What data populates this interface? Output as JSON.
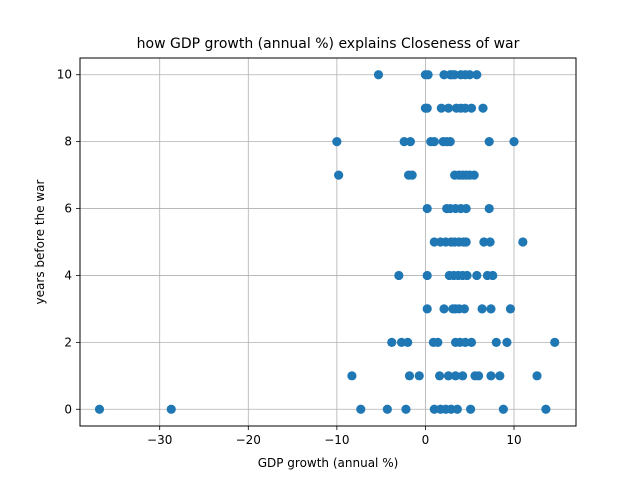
{
  "chart_data": {
    "type": "scatter",
    "title": "how GDP growth (annual %) explains Closeness of war",
    "xlabel": "GDP growth (annual %)",
    "ylabel": "years before the war",
    "xlim": [
      -39,
      17
    ],
    "ylim": [
      -0.5,
      10.5
    ],
    "xticks": [
      -30,
      -20,
      -10,
      0,
      10
    ],
    "xtick_labels": [
      "−30",
      "−20",
      "−10",
      "0",
      "10"
    ],
    "yticks": [
      0,
      2,
      4,
      6,
      8,
      10
    ],
    "ytick_labels": [
      "0",
      "2",
      "4",
      "6",
      "8",
      "10"
    ],
    "grid": true,
    "marker_color": "#1f77b4",
    "points": [
      {
        "x": -5.3,
        "y": 10
      },
      {
        "x": 0.0,
        "y": 10
      },
      {
        "x": 0.3,
        "y": 10
      },
      {
        "x": 2.1,
        "y": 10
      },
      {
        "x": 2.8,
        "y": 10
      },
      {
        "x": 3.0,
        "y": 10
      },
      {
        "x": 3.3,
        "y": 10
      },
      {
        "x": 4.0,
        "y": 10
      },
      {
        "x": 4.5,
        "y": 10
      },
      {
        "x": 5.0,
        "y": 10
      },
      {
        "x": 5.8,
        "y": 10
      },
      {
        "x": 0.0,
        "y": 9
      },
      {
        "x": 0.2,
        "y": 9
      },
      {
        "x": 1.8,
        "y": 9
      },
      {
        "x": 2.6,
        "y": 9
      },
      {
        "x": 3.5,
        "y": 9
      },
      {
        "x": 4.0,
        "y": 9
      },
      {
        "x": 4.5,
        "y": 9
      },
      {
        "x": 5.2,
        "y": 9
      },
      {
        "x": 6.5,
        "y": 9
      },
      {
        "x": -10.0,
        "y": 8
      },
      {
        "x": -2.4,
        "y": 8
      },
      {
        "x": -1.7,
        "y": 8
      },
      {
        "x": 0.6,
        "y": 8
      },
      {
        "x": 1.0,
        "y": 8
      },
      {
        "x": 2.0,
        "y": 8
      },
      {
        "x": 2.4,
        "y": 8
      },
      {
        "x": 2.8,
        "y": 8
      },
      {
        "x": 7.2,
        "y": 8
      },
      {
        "x": 10.0,
        "y": 8
      },
      {
        "x": -9.8,
        "y": 7
      },
      {
        "x": -1.9,
        "y": 7
      },
      {
        "x": -1.5,
        "y": 7
      },
      {
        "x": 3.3,
        "y": 7
      },
      {
        "x": 3.8,
        "y": 7
      },
      {
        "x": 4.2,
        "y": 7
      },
      {
        "x": 4.6,
        "y": 7
      },
      {
        "x": 5.0,
        "y": 7
      },
      {
        "x": 5.5,
        "y": 7
      },
      {
        "x": 0.2,
        "y": 6
      },
      {
        "x": 2.4,
        "y": 6
      },
      {
        "x": 2.8,
        "y": 6
      },
      {
        "x": 3.4,
        "y": 6
      },
      {
        "x": 4.0,
        "y": 6
      },
      {
        "x": 4.6,
        "y": 6
      },
      {
        "x": 7.2,
        "y": 6
      },
      {
        "x": 1.0,
        "y": 5
      },
      {
        "x": 1.7,
        "y": 5
      },
      {
        "x": 2.3,
        "y": 5
      },
      {
        "x": 2.9,
        "y": 5
      },
      {
        "x": 3.3,
        "y": 5
      },
      {
        "x": 3.8,
        "y": 5
      },
      {
        "x": 4.3,
        "y": 5
      },
      {
        "x": 4.6,
        "y": 5
      },
      {
        "x": 6.6,
        "y": 5
      },
      {
        "x": 7.3,
        "y": 5
      },
      {
        "x": 11.0,
        "y": 5
      },
      {
        "x": -3.0,
        "y": 4
      },
      {
        "x": 0.2,
        "y": 4
      },
      {
        "x": 2.7,
        "y": 4
      },
      {
        "x": 3.2,
        "y": 4
      },
      {
        "x": 3.7,
        "y": 4
      },
      {
        "x": 4.2,
        "y": 4
      },
      {
        "x": 4.7,
        "y": 4
      },
      {
        "x": 5.8,
        "y": 4
      },
      {
        "x": 7.0,
        "y": 4
      },
      {
        "x": 7.6,
        "y": 4
      },
      {
        "x": 0.2,
        "y": 3
      },
      {
        "x": 2.1,
        "y": 3
      },
      {
        "x": 3.1,
        "y": 3
      },
      {
        "x": 3.4,
        "y": 3
      },
      {
        "x": 3.8,
        "y": 3
      },
      {
        "x": 4.4,
        "y": 3
      },
      {
        "x": 6.4,
        "y": 3
      },
      {
        "x": 7.4,
        "y": 3
      },
      {
        "x": 9.6,
        "y": 3
      },
      {
        "x": -3.8,
        "y": 2
      },
      {
        "x": -2.7,
        "y": 2
      },
      {
        "x": -2.0,
        "y": 2
      },
      {
        "x": 0.9,
        "y": 2
      },
      {
        "x": 1.4,
        "y": 2
      },
      {
        "x": 3.4,
        "y": 2
      },
      {
        "x": 3.9,
        "y": 2
      },
      {
        "x": 4.5,
        "y": 2
      },
      {
        "x": 5.2,
        "y": 2
      },
      {
        "x": 8.0,
        "y": 2
      },
      {
        "x": 9.2,
        "y": 2
      },
      {
        "x": 14.6,
        "y": 2
      },
      {
        "x": -8.3,
        "y": 1
      },
      {
        "x": -1.8,
        "y": 1
      },
      {
        "x": -0.7,
        "y": 1
      },
      {
        "x": 1.6,
        "y": 1
      },
      {
        "x": 2.6,
        "y": 1
      },
      {
        "x": 3.4,
        "y": 1
      },
      {
        "x": 4.2,
        "y": 1
      },
      {
        "x": 5.6,
        "y": 1
      },
      {
        "x": 6.0,
        "y": 1
      },
      {
        "x": 7.4,
        "y": 1
      },
      {
        "x": 8.4,
        "y": 1
      },
      {
        "x": 12.6,
        "y": 1
      },
      {
        "x": -36.8,
        "y": 0
      },
      {
        "x": -28.7,
        "y": 0
      },
      {
        "x": -7.3,
        "y": 0
      },
      {
        "x": -4.3,
        "y": 0
      },
      {
        "x": -2.2,
        "y": 0
      },
      {
        "x": 1.0,
        "y": 0
      },
      {
        "x": 1.7,
        "y": 0
      },
      {
        "x": 2.3,
        "y": 0
      },
      {
        "x": 2.9,
        "y": 0
      },
      {
        "x": 3.6,
        "y": 0
      },
      {
        "x": 5.1,
        "y": 0
      },
      {
        "x": 8.8,
        "y": 0
      },
      {
        "x": 13.6,
        "y": 0
      }
    ]
  }
}
